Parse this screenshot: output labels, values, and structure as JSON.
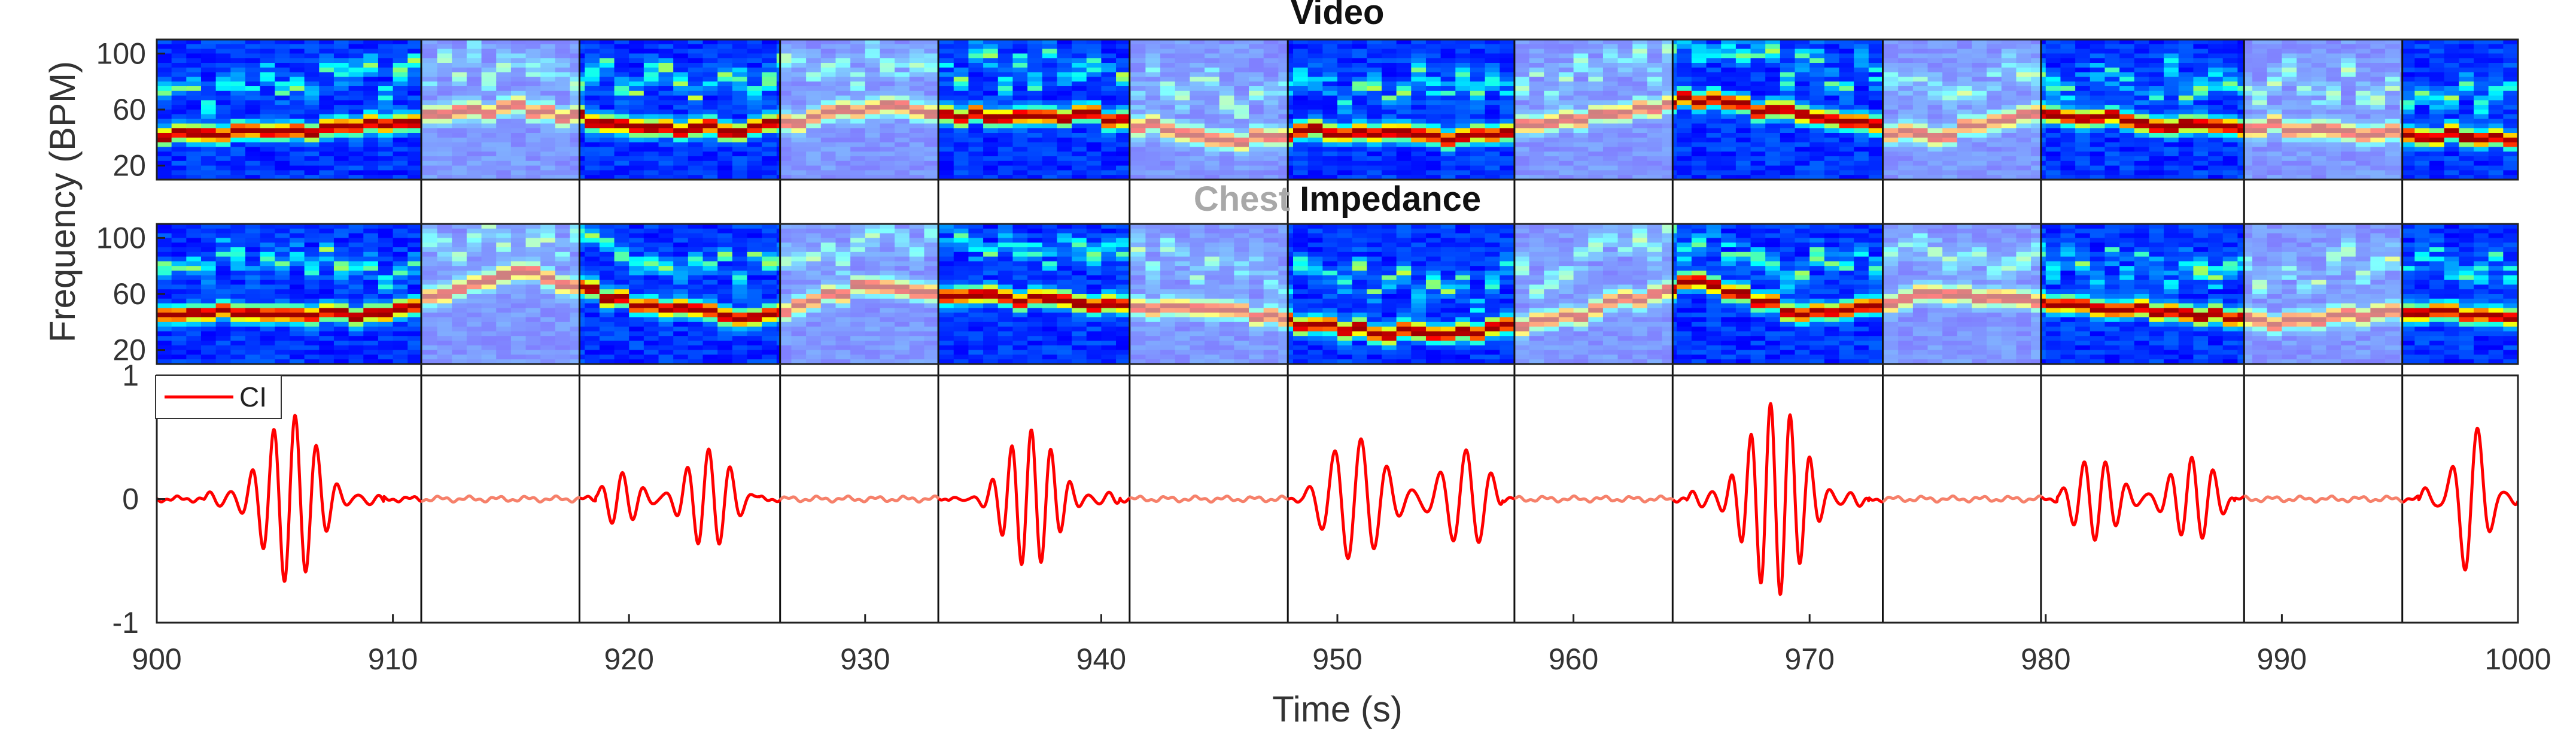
{
  "chart_data": [
    {
      "type": "heatmap",
      "title": "Video",
      "ylabel": "Frequency (BPM)",
      "yticks": [
        "100",
        "60",
        "20"
      ],
      "x_range": [
        900,
        1000
      ],
      "y_range": [
        10,
        110
      ],
      "colormap": "jet",
      "dominant_frequency": {
        "x": [
          900,
          905,
          910,
          915,
          920,
          925,
          930,
          935,
          940,
          945,
          950,
          955,
          960,
          965,
          970,
          975,
          980,
          985,
          990,
          995,
          1000
        ],
        "y": [
          42,
          44,
          50,
          62,
          48,
          45,
          62,
          55,
          55,
          38,
          45,
          40,
          52,
          68,
          55,
          40,
          58,
          50,
          48,
          42,
          40
        ]
      }
    },
    {
      "type": "heatmap",
      "title_parts": [
        {
          "text": "Chest",
          "color": "#a8a8a8"
        },
        {
          "text": "Impedance",
          "color": "#111111"
        }
      ],
      "yticks": [
        "100",
        "60",
        "20"
      ],
      "x_range": [
        900,
        1000
      ],
      "y_range": [
        10,
        110
      ],
      "colormap": "jet",
      "dominant_frequency": {
        "x": [
          900,
          905,
          910,
          915,
          920,
          925,
          930,
          935,
          940,
          945,
          950,
          955,
          960,
          965,
          970,
          975,
          980,
          985,
          990,
          995,
          1000
        ],
        "y": [
          48,
          45,
          45,
          78,
          55,
          42,
          65,
          58,
          52,
          48,
          35,
          30,
          45,
          68,
          45,
          60,
          55,
          48,
          40,
          48,
          42
        ]
      }
    },
    {
      "type": "line",
      "xlabel": "Time (s)",
      "xticks": [
        "900",
        "910",
        "920",
        "930",
        "940",
        "950",
        "960",
        "970",
        "980",
        "990",
        "1000"
      ],
      "yticks": [
        "1",
        "0",
        "-1"
      ],
      "xlim": [
        900,
        1000
      ],
      "ylim": [
        -1,
        1
      ],
      "series": [
        {
          "name": "CI",
          "color": "#ff0000",
          "inactive_color": "#f6806a"
        }
      ],
      "legend_position": "top-left",
      "active_bursts": [
        {
          "x0": 902,
          "x1": 909.6,
          "amp": 0.68,
          "freq_hz": 1.1
        },
        {
          "x0": 918.6,
          "x1": 925.5,
          "amp": 0.5,
          "freq_hz": 1.1
        },
        {
          "x0": 933.5,
          "x1": 940.8,
          "amp": 0.58,
          "freq_hz": 1.2
        },
        {
          "x0": 948.5,
          "x1": 957,
          "amp": 0.68,
          "freq_hz": 0.9
        },
        {
          "x0": 964.8,
          "x1": 972.5,
          "amp": 0.78,
          "freq_hz": 1.2
        },
        {
          "x0": 980.5,
          "x1": 988,
          "amp": 0.52,
          "freq_hz": 1.1
        },
        {
          "x0": 995.8,
          "x1": 1000,
          "amp": 0.65,
          "freq_hz": 0.9
        }
      ],
      "shaded_intervals": [
        [
          911.2,
          917.9
        ],
        [
          926.4,
          933.1
        ],
        [
          941.2,
          947.9
        ],
        [
          957.5,
          964.2
        ],
        [
          973.1,
          979.8
        ],
        [
          988.4,
          995.1
        ]
      ]
    }
  ]
}
